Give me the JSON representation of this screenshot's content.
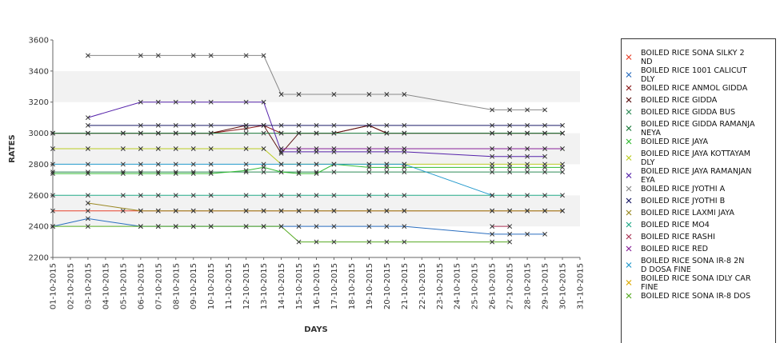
{
  "chart_data": {
    "type": "line",
    "xlabel": "DAYS",
    "ylabel": "RATES",
    "ylim": [
      2200,
      3600
    ],
    "yticks": [
      2200,
      2400,
      2600,
      2800,
      3000,
      3200,
      3400,
      3600
    ],
    "grid": "alternating horizontal bands",
    "legend_position": "right",
    "x": [
      "01-10-2015",
      "02-10-2015",
      "03-10-2015",
      "04-10-2015",
      "05-10-2015",
      "06-10-2015",
      "07-10-2015",
      "08-10-2015",
      "09-10-2015",
      "10-10-2015",
      "11-10-2015",
      "12-10-2015",
      "13-10-2015",
      "14-10-2015",
      "15-10-2015",
      "16-10-2015",
      "17-10-2015",
      "18-10-2015",
      "19-10-2015",
      "20-10-2015",
      "21-10-2015",
      "22-10-2015",
      "23-10-2015",
      "24-10-2015",
      "25-10-2015",
      "26-10-2015",
      "27-10-2015",
      "28-10-2015",
      "29-10-2015",
      "30-10-2015",
      "31-10-2015"
    ],
    "series": [
      {
        "name": "BOILED RICE SONA SILKY 2 ND",
        "legend_lines": [
          "BOILED RICE SONA SILKY 2",
          "ND"
        ],
        "color": "#e8402a",
        "values": [
          2500,
          null,
          2500,
          null,
          2500,
          2500,
          2500,
          2500,
          2500,
          2500,
          null,
          2500,
          2500,
          2500,
          2500,
          2500,
          2500,
          null,
          2500,
          2500,
          2500,
          null,
          null,
          null,
          null,
          2500,
          2500,
          2500,
          2500,
          2500,
          null
        ]
      },
      {
        "name": "BOILED RICE 1001 CALICUT DLY",
        "legend_lines": [
          "BOILED RICE 1001 CALICUT",
          "DLY"
        ],
        "color": "#2a6ebf",
        "values": [
          2400,
          null,
          2450,
          null,
          null,
          2400,
          2400,
          2400,
          2400,
          2400,
          null,
          2400,
          2400,
          2400,
          2400,
          2400,
          2400,
          null,
          2400,
          2400,
          2400,
          null,
          null,
          null,
          null,
          2350,
          2350,
          2350,
          2350,
          null,
          null
        ]
      },
      {
        "name": "BOILED RICE ANMOL GIDDA",
        "legend_lines": [
          "BOILED RICE ANMOL GIDDA"
        ],
        "color": "#8b1a1a",
        "values": [
          3000,
          null,
          3000,
          null,
          3000,
          3000,
          3000,
          3000,
          3000,
          3000,
          null,
          3030,
          3050,
          3000,
          3000,
          3000,
          3000,
          null,
          3050,
          3000,
          3000,
          null,
          null,
          null,
          null,
          3000,
          3000,
          3000,
          3000,
          3000,
          null
        ]
      },
      {
        "name": "BOILED RICE GIDDA",
        "legend_lines": [
          "BOILED RICE GIDDA"
        ],
        "color": "#5a0f0f",
        "values": [
          3000,
          null,
          3000,
          null,
          3000,
          3000,
          3000,
          3000,
          3000,
          3000,
          null,
          3050,
          3050,
          2870,
          3000,
          3000,
          3000,
          null,
          3050,
          3000,
          3000,
          null,
          null,
          null,
          null,
          3000,
          3000,
          3000,
          3000,
          3000,
          null
        ]
      },
      {
        "name": "BOILED RICE GIDDA BUS",
        "legend_lines": [
          "BOILED RICE GIDDA BUS"
        ],
        "color": "#2e8b57",
        "values": [
          2750,
          null,
          2750,
          null,
          2750,
          2750,
          2750,
          2750,
          2750,
          2750,
          null,
          2750,
          2750,
          2750,
          2750,
          2750,
          2750,
          null,
          2750,
          2750,
          2750,
          null,
          null,
          null,
          null,
          2750,
          2750,
          2750,
          2750,
          2750,
          null
        ]
      },
      {
        "name": "BOILED RICE GIDDA RAMANJANEYA",
        "legend_lines": [
          "BOILED RICE GIDDA RAMANJA",
          "NEYA"
        ],
        "color": "#1a7a3a",
        "values": [
          3000,
          null,
          3000,
          null,
          3000,
          3000,
          3000,
          3000,
          3000,
          3000,
          null,
          3000,
          3000,
          3000,
          3000,
          3000,
          3000,
          null,
          3000,
          3000,
          3000,
          null,
          null,
          null,
          null,
          3000,
          3000,
          3000,
          3000,
          3000,
          null
        ]
      },
      {
        "name": "BOILED RICE JAYA",
        "legend_lines": [
          "BOILED RICE JAYA"
        ],
        "color": "#33bb33",
        "values": [
          2740,
          null,
          2740,
          null,
          2740,
          2740,
          2740,
          2740,
          2740,
          2740,
          null,
          2760,
          2780,
          2750,
          2740,
          2740,
          2800,
          null,
          2780,
          2780,
          2780,
          null,
          null,
          null,
          null,
          2780,
          2780,
          2780,
          2780,
          2780,
          null
        ]
      },
      {
        "name": "BOILED RICE JAYA KOTTAYAM DLY",
        "legend_lines": [
          "BOILED RICE JAYA KOTTAYAM",
          "DLY"
        ],
        "color": "#bbcc22",
        "values": [
          2900,
          null,
          2900,
          null,
          2900,
          2900,
          2900,
          2900,
          2900,
          2900,
          null,
          2900,
          2900,
          2800,
          2800,
          2800,
          2800,
          null,
          2800,
          2800,
          2800,
          null,
          null,
          null,
          null,
          2800,
          2800,
          2800,
          2800,
          2800,
          null
        ]
      },
      {
        "name": "BOILED RICE JAYA RAMANJANEYA",
        "legend_lines": [
          "BOILED RICE JAYA RAMANJAN",
          "EYA"
        ],
        "color": "#5522aa",
        "values": [
          null,
          null,
          3100,
          null,
          null,
          3200,
          3200,
          3200,
          3200,
          3200,
          null,
          3200,
          3200,
          2880,
          2880,
          2880,
          2880,
          null,
          2880,
          2880,
          2880,
          null,
          null,
          null,
          null,
          2850,
          2850,
          2850,
          2850,
          null,
          null
        ]
      },
      {
        "name": "BOILED RICE JYOTHI A",
        "legend_lines": [
          "BOILED RICE JYOTHI A"
        ],
        "color": "#888888",
        "values": [
          null,
          null,
          3500,
          null,
          null,
          3500,
          3500,
          null,
          3500,
          3500,
          null,
          3500,
          3500,
          3250,
          3250,
          null,
          3250,
          null,
          3250,
          3250,
          3250,
          null,
          null,
          null,
          null,
          3150,
          3150,
          3150,
          3150,
          null,
          null
        ]
      },
      {
        "name": "BOILED RICE JYOTHI B",
        "legend_lines": [
          "BOILED RICE JYOTHI B"
        ],
        "color": "#1a1a66",
        "values": [
          null,
          null,
          3050,
          null,
          null,
          3050,
          3050,
          3050,
          3050,
          3050,
          null,
          3050,
          3050,
          3050,
          3050,
          3050,
          3050,
          null,
          3050,
          3050,
          3050,
          null,
          null,
          null,
          null,
          3050,
          3050,
          3050,
          3050,
          3050,
          null
        ]
      },
      {
        "name": "BOILED RICE LAXMI JAYA",
        "legend_lines": [
          "BOILED RICE LAXMI JAYA"
        ],
        "color": "#998822",
        "values": [
          null,
          null,
          2550,
          null,
          null,
          2500,
          2500,
          2500,
          2500,
          2500,
          null,
          2500,
          2500,
          2500,
          2500,
          2500,
          2500,
          null,
          2500,
          2500,
          2500,
          null,
          null,
          null,
          null,
          2500,
          2500,
          2500,
          2500,
          2500,
          null
        ]
      },
      {
        "name": "BOILED RICE MO4",
        "legend_lines": [
          "BOILED RICE MO4"
        ],
        "color": "#22aa88",
        "values": [
          2600,
          null,
          2600,
          null,
          2600,
          2600,
          2600,
          2600,
          2600,
          2600,
          null,
          2600,
          2600,
          2600,
          2600,
          2600,
          2600,
          null,
          2600,
          2600,
          2600,
          null,
          null,
          null,
          null,
          2600,
          2600,
          2600,
          2600,
          2600,
          null
        ]
      },
      {
        "name": "BOILED RICE RASHI",
        "legend_lines": [
          "BOILED RICE RASHI"
        ],
        "color": "#aa3355",
        "values": [
          null,
          null,
          null,
          null,
          null,
          null,
          null,
          null,
          null,
          null,
          null,
          null,
          null,
          null,
          null,
          null,
          null,
          null,
          null,
          null,
          null,
          null,
          null,
          null,
          null,
          2400,
          2400,
          null,
          null,
          null,
          null
        ]
      },
      {
        "name": "BOILED RICE RED",
        "legend_lines": [
          "BOILED RICE RED"
        ],
        "color": "#882299",
        "values": [
          null,
          null,
          null,
          null,
          null,
          null,
          null,
          null,
          null,
          null,
          null,
          null,
          null,
          2900,
          2900,
          2900,
          2900,
          null,
          2900,
          2900,
          2900,
          null,
          null,
          null,
          null,
          2900,
          2900,
          2900,
          2900,
          2900,
          null
        ]
      },
      {
        "name": "BOILED RICE SONA IR-8 2ND DOSA FINE",
        "legend_lines": [
          "BOILED RICE SONA  IR-8 2N",
          "D DOSA FINE"
        ],
        "color": "#2299cc",
        "values": [
          2800,
          null,
          2800,
          null,
          2800,
          2800,
          2800,
          2800,
          2800,
          2800,
          null,
          2800,
          2800,
          2800,
          2800,
          2800,
          2800,
          null,
          2800,
          2800,
          2800,
          null,
          null,
          null,
          null,
          2600,
          null,
          null,
          null,
          null,
          null
        ]
      },
      {
        "name": "BOILED RICE SONA IDLY CAR FINE",
        "legend_lines": [
          "BOILED RICE SONA IDLY CAR",
          "FINE"
        ],
        "color": "#ddaa00",
        "values": [
          null,
          null,
          null,
          null,
          null,
          null,
          null,
          null,
          null,
          null,
          null,
          null,
          null,
          null,
          null,
          null,
          null,
          null,
          null,
          null,
          null,
          null,
          null,
          null,
          null,
          null,
          null,
          null,
          null,
          null,
          null
        ]
      },
      {
        "name": "BOILED RICE SONA IR-8 DOS",
        "legend_lines": [
          "BOILED RICE SONA IR-8 DOS"
        ],
        "color": "#55aa22",
        "values": [
          2400,
          null,
          2400,
          null,
          null,
          2400,
          2400,
          2400,
          2400,
          2400,
          null,
          2400,
          2400,
          2400,
          2300,
          2300,
          2300,
          null,
          2300,
          2300,
          2300,
          null,
          null,
          null,
          null,
          2300,
          2300,
          null,
          null,
          null,
          null
        ]
      }
    ]
  }
}
